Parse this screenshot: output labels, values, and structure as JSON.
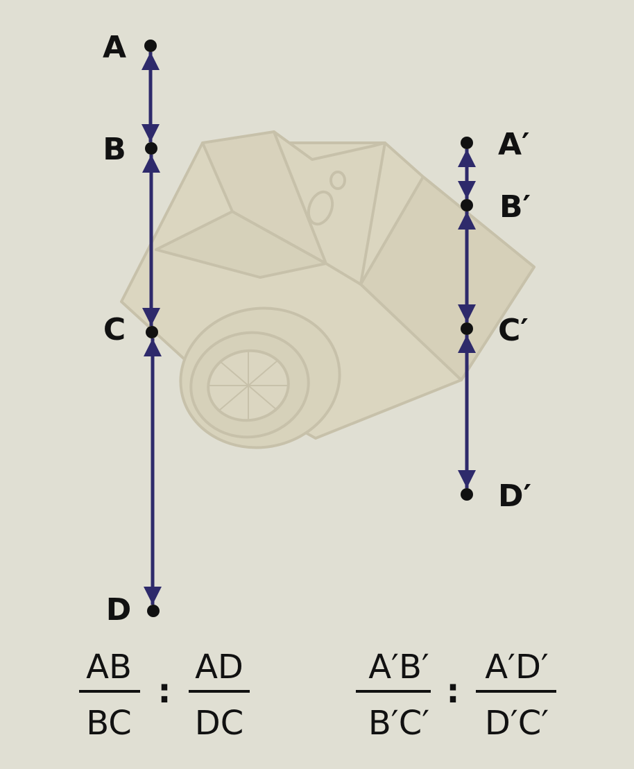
{
  "colors": {
    "background": "#e0dfd3",
    "segment": "#2e2a6b",
    "point": "#111111",
    "text": "#111111",
    "camera_fill": "#d8cfb2",
    "camera_stroke": "#b4a98a"
  },
  "camera": {
    "icon": "camera-icon"
  },
  "left_line": {
    "points": [
      {
        "id": "A",
        "label": "A"
      },
      {
        "id": "B",
        "label": "B"
      },
      {
        "id": "C",
        "label": "C"
      },
      {
        "id": "D",
        "label": "D"
      }
    ]
  },
  "right_line": {
    "points": [
      {
        "id": "A1",
        "label": "A′"
      },
      {
        "id": "B1",
        "label": "B′"
      },
      {
        "id": "C1",
        "label": "C′"
      },
      {
        "id": "D1",
        "label": "D′"
      }
    ]
  },
  "left_ratio": {
    "frac1_num": "AB",
    "frac1_den": "BC",
    "separator": ":",
    "frac2_num": "AD",
    "frac2_den": "DC"
  },
  "right_ratio": {
    "frac1_num": "A′B′",
    "frac1_den": "B′C′",
    "separator": ":",
    "frac2_num": "A′D′",
    "frac2_den": "D′C′"
  }
}
